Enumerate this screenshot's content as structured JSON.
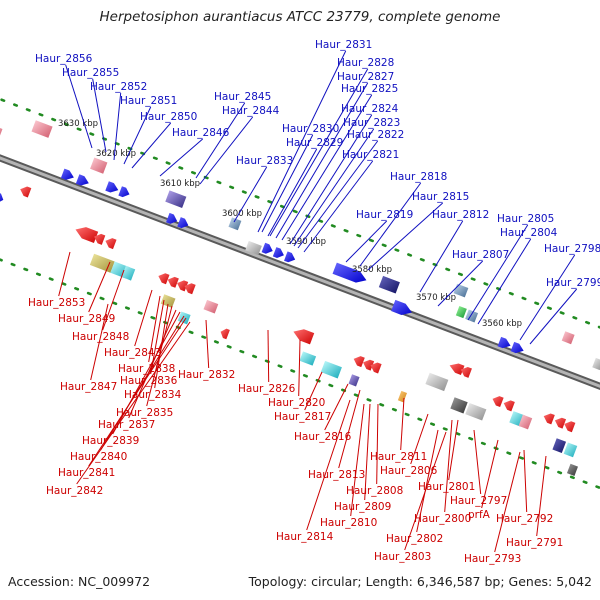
{
  "title": "Herpetosiphon aurantiacus ATCC 23779, complete genome",
  "footer": {
    "accession": "Accession: NC_009972",
    "summary": "Topology: circular; Length: 6,346,587 bp; Genes: 5,042"
  },
  "colors": {
    "forward_label": "#1010c0",
    "reverse_label": "#cc0000",
    "backbone": "#8a8a8a",
    "tick": "#228b22"
  },
  "kbp_ticks": [
    "3630 kbp",
    "3620 kbp",
    "3610 kbp",
    "3600 kbp",
    "3590 kbp",
    "3580 kbp",
    "3570 kbp",
    "3560 kbp"
  ],
  "forward_genes": [
    "Haur_2856",
    "Haur_2855",
    "Haur_2852",
    "Haur_2851",
    "Haur_2850",
    "Haur_2846",
    "Haur_2845",
    "Haur_2844",
    "Haur_2833",
    "Haur_2831",
    "Haur_2828",
    "Haur_2827",
    "Haur_2825",
    "Haur_2824",
    "Haur_2823",
    "Haur_2830",
    "Haur_2822",
    "Haur_2829",
    "Haur_2821",
    "Haur_2818",
    "Haur_2815",
    "Haur_2819",
    "Haur_2812",
    "Haur_2805",
    "Haur_2804",
    "Haur_2798",
    "Haur_2807",
    "Haur_2799"
  ],
  "reverse_genes": [
    "Haur_2853",
    "Haur_2849",
    "Haur_2848",
    "Haur_2843",
    "Haur_2838",
    "Haur_2836",
    "Haur_2847",
    "Haur_2834",
    "Haur_2835",
    "Haur_2837",
    "Haur_2839",
    "Haur_2840",
    "Haur_2841",
    "Haur_2842",
    "Haur_2832",
    "Haur_2826",
    "Haur_2820",
    "Haur_2817",
    "Haur_2816",
    "Haur_2811",
    "Haur_2813",
    "Haur_2806",
    "Haur_2808",
    "Haur_2809",
    "Haur_2810",
    "Haur_2814",
    "Haur_2801",
    "Haur_2800",
    "Haur_2797",
    "prfA",
    "Haur_2802",
    "Haur_2803",
    "Haur_2792",
    "Haur_2791",
    "Haur_2793"
  ]
}
